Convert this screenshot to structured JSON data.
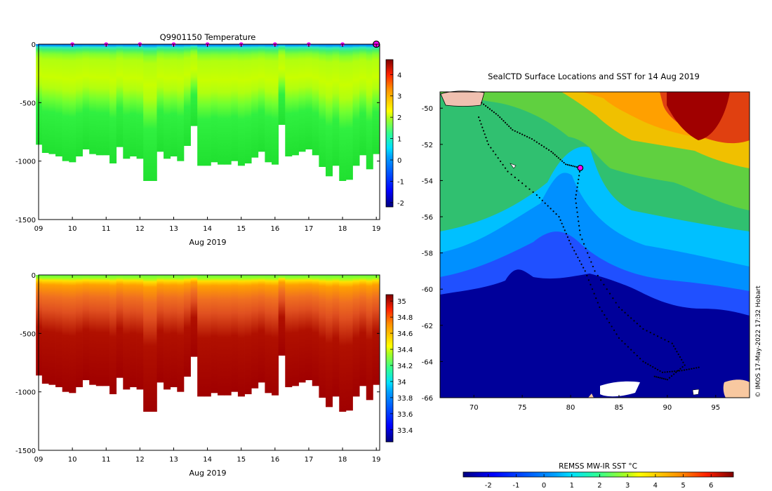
{
  "chart_data": [
    {
      "type": "heatmap",
      "title": "Q9901150  Temperature",
      "xlabel": "Aug 2019",
      "x_ticks": [
        "09",
        "10",
        "11",
        "12",
        "13",
        "14",
        "15",
        "16",
        "17",
        "18",
        "19"
      ],
      "y_ticks": [
        "0",
        "-500",
        "-1000",
        "-1500"
      ],
      "ylim": [
        -1500,
        0
      ],
      "colorbar": {
        "ticks": [
          "4",
          "3",
          "2",
          "1",
          "0",
          "-1",
          "-2"
        ],
        "range": [
          -2.2,
          4.7
        ]
      },
      "profile_days": [
        9.02,
        9.2,
        9.4,
        9.6,
        9.8,
        10.0,
        10.2,
        10.4,
        10.6,
        10.8,
        11.0,
        11.2,
        11.4,
        11.6,
        11.8,
        12.0,
        12.2,
        12.4,
        12.6,
        12.8,
        13.0,
        13.2,
        13.4,
        13.6,
        13.8,
        14.0,
        14.2,
        14.4,
        14.6,
        14.8,
        15.0,
        15.2,
        15.4,
        15.6,
        15.8,
        16.0,
        16.2,
        16.4,
        16.6,
        16.8,
        17.0,
        17.2,
        17.4,
        17.6,
        17.8,
        18.0,
        18.2,
        18.4,
        18.6,
        18.8,
        18.98
      ],
      "profile_max_depth_m": [
        -860,
        -930,
        -940,
        -960,
        -1000,
        -1010,
        -960,
        -900,
        -940,
        -950,
        -950,
        -1020,
        -880,
        -980,
        -960,
        -980,
        -1170,
        -1170,
        -920,
        -980,
        -960,
        -1000,
        -870,
        -700,
        -1040,
        -1040,
        -1010,
        -1030,
        -1030,
        -1000,
        -1040,
        -1020,
        -970,
        -920,
        -1010,
        -1030,
        -690,
        -960,
        -950,
        -920,
        -900,
        -950,
        -1050,
        -1130,
        -1040,
        -1170,
        -1160,
        -1040,
        -950,
        -1070,
        -940
      ],
      "surface_markers_days": [
        10,
        11,
        12,
        13,
        14,
        15,
        16,
        17,
        18
      ],
      "current_marker_day": 19
    },
    {
      "type": "heatmap",
      "title": "",
      "xlabel": "Aug 2019",
      "x_ticks": [
        "09",
        "10",
        "11",
        "12",
        "13",
        "14",
        "15",
        "16",
        "17",
        "18",
        "19"
      ],
      "y_ticks": [
        "0",
        "-500",
        "-1000",
        "-1500"
      ],
      "ylim": [
        -1500,
        0
      ],
      "colorbar": {
        "ticks": [
          "35",
          "34.8",
          "34.6",
          "34.4",
          "34.2",
          "34",
          "33.8",
          "33.6",
          "33.4"
        ],
        "range": [
          33.25,
          35.08
        ]
      }
    },
    {
      "type": "heatmap",
      "title": "SealCTD Surface Locations and SST for 14 Aug 2019",
      "x_ticks": [
        "70",
        "75",
        "80",
        "85",
        "90",
        "95"
      ],
      "y_ticks": [
        "-50",
        "-52",
        "-54",
        "-56",
        "-58",
        "-60",
        "-62",
        "-64",
        "-66"
      ],
      "xlim": [
        66.5,
        98.5
      ],
      "ylim": [
        -66,
        -49.1
      ],
      "colorbar": {
        "label": "REMSS MW-IR SST °C",
        "ticks": [
          "-2",
          "-1",
          "0",
          "1",
          "2",
          "3",
          "4",
          "5",
          "6"
        ],
        "range": [
          -2.9,
          6.8
        ]
      },
      "current_position": [
        81,
        -53.3
      ],
      "credit": "© IMOS 17-May-2022 17:32 Hobart"
    }
  ],
  "colors": {
    "jet_stops": [
      "#00007f",
      "#0000ff",
      "#0080ff",
      "#00e5ff",
      "#30ff8f",
      "#a0ff30",
      "#ffff00",
      "#ff9000",
      "#ff2000",
      "#7f0000"
    ],
    "marker": "#ff00ff"
  }
}
